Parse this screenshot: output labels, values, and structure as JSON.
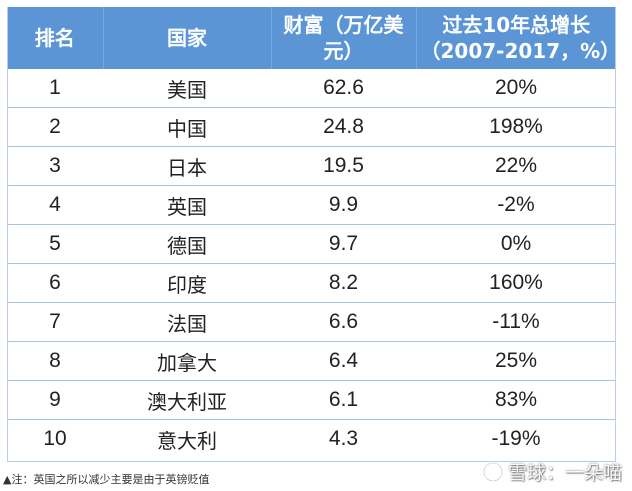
{
  "table": {
    "headers": {
      "rank": "排名",
      "country": "国家",
      "wealth_line1": "财富（万亿美",
      "wealth_line2": "元）",
      "growth_line1": "过去10年总增长",
      "growth_line2": "（2007-2017，%）"
    },
    "rows": [
      {
        "rank": "1",
        "country": "美国",
        "wealth": "62.6",
        "growth": "20%"
      },
      {
        "rank": "2",
        "country": "中国",
        "wealth": "24.8",
        "growth": "198%"
      },
      {
        "rank": "3",
        "country": "日本",
        "wealth": "19.5",
        "growth": "22%"
      },
      {
        "rank": "4",
        "country": "英国",
        "wealth": "9.9",
        "growth": "-2%"
      },
      {
        "rank": "5",
        "country": "德国",
        "wealth": "9.7",
        "growth": "0%"
      },
      {
        "rank": "6",
        "country": "印度",
        "wealth": "8.2",
        "growth": "160%"
      },
      {
        "rank": "7",
        "country": "法国",
        "wealth": "6.6",
        "growth": "-11%"
      },
      {
        "rank": "8",
        "country": "加拿大",
        "wealth": "6.4",
        "growth": "25%"
      },
      {
        "rank": "9",
        "country": "澳大利亚",
        "wealth": "6.1",
        "growth": "83%"
      },
      {
        "rank": "10",
        "country": "意大利",
        "wealth": "4.3",
        "growth": "-19%"
      }
    ]
  },
  "footnote": "▲注：英国之所以减少主要是由于英镑贬值",
  "watermark": {
    "text": "雪球：一朵喵",
    "icon": "snowball-icon"
  },
  "colors": {
    "header_bg": "#5b95d6",
    "header_text": "#ffffff",
    "row_divider": "#a9c4e6",
    "body_text": "#222222"
  }
}
